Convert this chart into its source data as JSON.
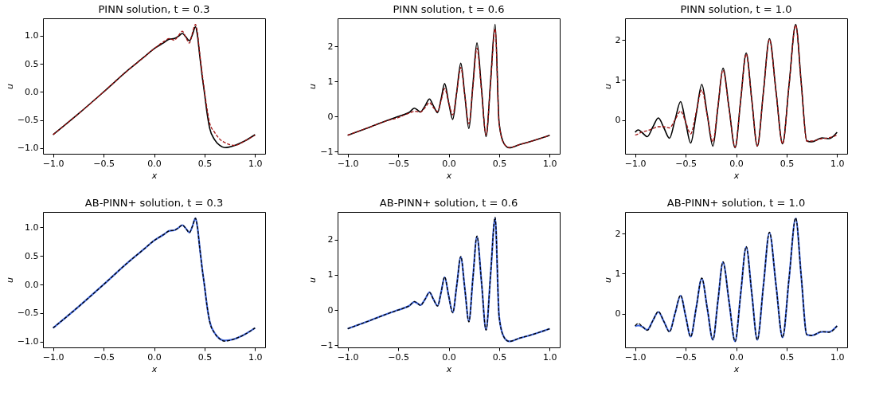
{
  "chart_data": [
    {
      "type": "line",
      "title": "PINN solution, t = 0.3",
      "xlabel": "x",
      "ylabel": "u",
      "xlim": [
        -1.1,
        1.1
      ],
      "ylim": [
        -1.1,
        1.31
      ],
      "xticks": [
        {
          "value": -1,
          "label": "−1.0"
        },
        {
          "value": -0.5,
          "label": "−0.5"
        },
        {
          "value": 0,
          "label": "0.0"
        },
        {
          "value": 0.5,
          "label": "0.5"
        },
        {
          "value": 1,
          "label": "1.0"
        }
      ],
      "yticks": [
        {
          "value": -1,
          "label": "−1.0"
        },
        {
          "value": -0.5,
          "label": "−0.5"
        },
        {
          "value": 0,
          "label": "0.0"
        },
        {
          "value": 0.5,
          "label": "0.5"
        },
        {
          "value": 1,
          "label": "1.0"
        }
      ],
      "grid": false,
      "x": [
        -1,
        -0.75,
        -0.5,
        -0.25,
        -0.1,
        0,
        0.1,
        0.15,
        0.2,
        0.24,
        0.28,
        0.315,
        0.35,
        0.38,
        0.41,
        0.43,
        0.45,
        0.475,
        0.5,
        0.525,
        0.55,
        0.6,
        0.65,
        0.7,
        0.8,
        0.9,
        1.0
      ],
      "series": [
        {
          "color": "#000000",
          "line_style": "solid",
          "values": [
            -0.76,
            -0.39,
            0.0,
            0.4,
            0.62,
            0.77,
            0.88,
            0.94,
            0.95,
            0.99,
            1.04,
            0.98,
            0.91,
            1.02,
            1.16,
            1.0,
            0.68,
            0.3,
            -0.03,
            -0.38,
            -0.64,
            -0.85,
            -0.95,
            -0.99,
            -0.95,
            -0.87,
            -0.76
          ]
        },
        {
          "color": "#a01010",
          "line_style": "dashed",
          "values": [
            -0.76,
            -0.39,
            0.0,
            0.4,
            0.62,
            0.77,
            0.9,
            0.95,
            0.92,
            1.0,
            1.08,
            0.97,
            0.87,
            1.05,
            1.2,
            1.05,
            0.72,
            0.35,
            0.0,
            -0.3,
            -0.55,
            -0.72,
            -0.84,
            -0.9,
            -0.95,
            -0.87,
            -0.77
          ]
        }
      ]
    },
    {
      "type": "line",
      "title": "PINN solution, t = 0.6",
      "xlabel": "x",
      "ylabel": "u",
      "xlim": [
        -1.1,
        1.1
      ],
      "ylim": [
        -1.06,
        2.8
      ],
      "xticks": [
        {
          "value": -1,
          "label": "−1.0"
        },
        {
          "value": -0.5,
          "label": "−0.5"
        },
        {
          "value": 0,
          "label": "0.0"
        },
        {
          "value": 0.5,
          "label": "0.5"
        },
        {
          "value": 1,
          "label": "1.0"
        }
      ],
      "yticks": [
        {
          "value": -1,
          "label": "−1"
        },
        0,
        1,
        2
      ],
      "grid": false,
      "x": [
        -1,
        -0.8,
        -0.6,
        -0.5,
        -0.45,
        -0.39,
        -0.34,
        -0.31,
        -0.28,
        -0.235,
        -0.19,
        -0.15,
        -0.11,
        -0.075,
        -0.04,
        0.0,
        0.04,
        0.08,
        0.12,
        0.16,
        0.2,
        0.24,
        0.28,
        0.325,
        0.37,
        0.415,
        0.46,
        0.5,
        0.55,
        0.6,
        0.7,
        0.8,
        0.9,
        1.0
      ],
      "series": [
        {
          "color": "#000000",
          "line_style": "solid",
          "values": [
            -0.53,
            -0.32,
            -0.1,
            0.0,
            0.05,
            0.12,
            0.24,
            0.19,
            0.13,
            0.3,
            0.5,
            0.3,
            0.11,
            0.5,
            0.94,
            0.4,
            -0.08,
            0.7,
            1.52,
            0.6,
            -0.34,
            0.9,
            2.1,
            0.8,
            -0.57,
            1.0,
            2.63,
            -0.2,
            -0.78,
            -0.89,
            -0.8,
            -0.72,
            -0.63,
            -0.53
          ]
        },
        {
          "color": "#a01010",
          "line_style": "dashed",
          "values": [
            -0.53,
            -0.32,
            -0.11,
            -0.03,
            0.03,
            0.1,
            0.15,
            0.14,
            0.13,
            0.25,
            0.4,
            0.25,
            0.15,
            0.45,
            0.8,
            0.4,
            0.05,
            0.7,
            1.4,
            0.6,
            -0.2,
            0.85,
            1.95,
            0.75,
            -0.52,
            0.95,
            2.5,
            -0.2,
            -0.78,
            -0.88,
            -0.8,
            -0.72,
            -0.63,
            -0.53
          ]
        }
      ]
    },
    {
      "type": "line",
      "title": "PINN solution, t = 1.0",
      "xlabel": "x",
      "ylabel": "u",
      "xlim": [
        -1.1,
        1.1
      ],
      "ylim": [
        -0.85,
        2.55
      ],
      "xticks": [
        {
          "value": -1,
          "label": "−1.0"
        },
        {
          "value": -0.5,
          "label": "−0.5"
        },
        {
          "value": 0,
          "label": "0.0"
        },
        {
          "value": 0.5,
          "label": "0.5"
        },
        {
          "value": 1,
          "label": "1.0"
        }
      ],
      "yticks": [
        0,
        1,
        2
      ],
      "grid": false,
      "x": [
        -1,
        -0.97,
        -0.93,
        -0.88,
        -0.825,
        -0.77,
        -0.715,
        -0.66,
        -0.605,
        -0.55,
        -0.5,
        -0.45,
        -0.395,
        -0.34,
        -0.285,
        -0.23,
        -0.18,
        -0.13,
        -0.07,
        -0.01,
        0.045,
        0.1,
        0.155,
        0.21,
        0.27,
        0.33,
        0.395,
        0.46,
        0.525,
        0.59,
        0.645,
        0.7,
        0.75,
        0.85,
        0.92,
        1.0
      ],
      "series": [
        {
          "color": "#000000",
          "line_style": "solid",
          "values": [
            -0.31,
            -0.25,
            -0.32,
            -0.42,
            -0.18,
            0.05,
            -0.2,
            -0.46,
            0.0,
            0.46,
            -0.06,
            -0.58,
            0.15,
            0.89,
            0.12,
            -0.66,
            0.32,
            1.3,
            0.3,
            -0.7,
            0.49,
            1.68,
            0.51,
            -0.66,
            0.69,
            2.04,
            0.72,
            -0.6,
            0.9,
            2.4,
            0.93,
            -0.53,
            -0.55,
            -0.45,
            -0.47,
            -0.31
          ]
        },
        {
          "color": "#a01010",
          "line_style": "dashed",
          "values": [
            -0.38,
            -0.35,
            -0.3,
            -0.27,
            -0.22,
            -0.17,
            -0.17,
            -0.2,
            0.0,
            0.22,
            -0.05,
            -0.35,
            0.2,
            0.75,
            0.1,
            -0.55,
            0.35,
            1.25,
            0.28,
            -0.68,
            0.49,
            1.65,
            0.5,
            -0.65,
            0.68,
            2.02,
            0.71,
            -0.6,
            0.89,
            2.38,
            0.92,
            -0.53,
            -0.53,
            -0.47,
            -0.45,
            -0.38
          ]
        }
      ]
    },
    {
      "type": "line",
      "title": "AB-PINN+ solution, t = 0.3",
      "xlabel": "x",
      "ylabel": "u",
      "xlim": [
        -1.1,
        1.1
      ],
      "ylim": [
        -1.1,
        1.27
      ],
      "xticks": [
        {
          "value": -1,
          "label": "−1.0"
        },
        {
          "value": -0.5,
          "label": "−0.5"
        },
        {
          "value": 0,
          "label": "0.0"
        },
        {
          "value": 0.5,
          "label": "0.5"
        },
        {
          "value": 1,
          "label": "1.0"
        }
      ],
      "yticks": [
        {
          "value": -1,
          "label": "−1.0"
        },
        {
          "value": -0.5,
          "label": "−0.5"
        },
        {
          "value": 0,
          "label": "0.0"
        },
        {
          "value": 0.5,
          "label": "0.5"
        },
        {
          "value": 1,
          "label": "1.0"
        }
      ],
      "grid": false,
      "x": [
        -1,
        -0.75,
        -0.5,
        -0.25,
        -0.1,
        0,
        0.1,
        0.15,
        0.2,
        0.24,
        0.28,
        0.315,
        0.35,
        0.38,
        0.41,
        0.43,
        0.45,
        0.475,
        0.5,
        0.525,
        0.55,
        0.6,
        0.65,
        0.7,
        0.8,
        0.9,
        1.0
      ],
      "series": [
        {
          "color": "#4169e1",
          "line_style": "solid",
          "values": [
            -0.76,
            -0.39,
            0.0,
            0.4,
            0.62,
            0.77,
            0.88,
            0.94,
            0.95,
            0.99,
            1.04,
            0.98,
            0.91,
            1.02,
            1.16,
            1.0,
            0.68,
            0.3,
            -0.03,
            -0.38,
            -0.64,
            -0.85,
            -0.95,
            -0.98,
            -0.95,
            -0.87,
            -0.76
          ]
        },
        {
          "color": "#000000",
          "line_style": "dashed",
          "values": [
            -0.76,
            -0.39,
            0.0,
            0.4,
            0.62,
            0.77,
            0.88,
            0.94,
            0.95,
            0.99,
            1.04,
            0.98,
            0.91,
            1.02,
            1.16,
            1.0,
            0.68,
            0.3,
            -0.03,
            -0.38,
            -0.64,
            -0.85,
            -0.95,
            -0.99,
            -0.95,
            -0.87,
            -0.76
          ]
        }
      ]
    },
    {
      "type": "line",
      "title": "AB-PINN+ solution, t = 0.6",
      "xlabel": "x",
      "ylabel": "u",
      "xlim": [
        -1.1,
        1.1
      ],
      "ylim": [
        -1.06,
        2.78
      ],
      "xticks": [
        {
          "value": -1,
          "label": "−1.0"
        },
        {
          "value": -0.5,
          "label": "−0.5"
        },
        {
          "value": 0,
          "label": "0.0"
        },
        {
          "value": 0.5,
          "label": "0.5"
        },
        {
          "value": 1,
          "label": "1.0"
        }
      ],
      "yticks": [
        {
          "value": -1,
          "label": "−1"
        },
        0,
        1,
        2
      ],
      "grid": false,
      "x": [
        -1,
        -0.8,
        -0.6,
        -0.5,
        -0.45,
        -0.39,
        -0.34,
        -0.31,
        -0.28,
        -0.235,
        -0.19,
        -0.15,
        -0.11,
        -0.075,
        -0.04,
        0.0,
        0.04,
        0.08,
        0.12,
        0.16,
        0.2,
        0.24,
        0.28,
        0.325,
        0.37,
        0.415,
        0.46,
        0.5,
        0.55,
        0.6,
        0.7,
        0.8,
        0.9,
        1.0
      ],
      "series": [
        {
          "color": "#4169e1",
          "line_style": "solid",
          "values": [
            -0.53,
            -0.32,
            -0.1,
            0.0,
            0.05,
            0.12,
            0.23,
            0.19,
            0.14,
            0.3,
            0.5,
            0.3,
            0.12,
            0.5,
            0.93,
            0.4,
            -0.07,
            0.7,
            1.5,
            0.6,
            -0.32,
            0.9,
            2.08,
            0.8,
            -0.56,
            1.0,
            2.6,
            -0.2,
            -0.78,
            -0.89,
            -0.8,
            -0.72,
            -0.63,
            -0.53
          ]
        },
        {
          "color": "#000000",
          "line_style": "dashed",
          "values": [
            -0.53,
            -0.32,
            -0.1,
            0.0,
            0.05,
            0.12,
            0.24,
            0.19,
            0.13,
            0.3,
            0.5,
            0.3,
            0.11,
            0.5,
            0.94,
            0.4,
            -0.08,
            0.7,
            1.52,
            0.6,
            -0.34,
            0.9,
            2.1,
            0.8,
            -0.57,
            1.0,
            2.63,
            -0.2,
            -0.78,
            -0.89,
            -0.8,
            -0.72,
            -0.63,
            -0.53
          ]
        }
      ]
    },
    {
      "type": "line",
      "title": "AB-PINN+ solution, t = 1.0",
      "xlabel": "x",
      "ylabel": "u",
      "xlim": [
        -1.1,
        1.1
      ],
      "ylim": [
        -0.85,
        2.55
      ],
      "xticks": [
        {
          "value": -1,
          "label": "−1.0"
        },
        {
          "value": -0.5,
          "label": "−0.5"
        },
        {
          "value": 0,
          "label": "0.0"
        },
        {
          "value": 0.5,
          "label": "0.5"
        },
        {
          "value": 1,
          "label": "1.0"
        }
      ],
      "yticks": [
        0,
        1,
        2
      ],
      "grid": false,
      "x": [
        -1,
        -0.97,
        -0.93,
        -0.88,
        -0.825,
        -0.77,
        -0.715,
        -0.66,
        -0.605,
        -0.55,
        -0.5,
        -0.45,
        -0.395,
        -0.34,
        -0.285,
        -0.23,
        -0.18,
        -0.13,
        -0.07,
        -0.01,
        0.045,
        0.1,
        0.155,
        0.21,
        0.27,
        0.33,
        0.395,
        0.46,
        0.525,
        0.59,
        0.645,
        0.7,
        0.75,
        0.85,
        0.92,
        1.0
      ],
      "series": [
        {
          "color": "#4169e1",
          "line_style": "solid",
          "values": [
            -0.32,
            -0.3,
            -0.33,
            -0.41,
            -0.18,
            0.04,
            -0.2,
            -0.45,
            0.0,
            0.45,
            -0.06,
            -0.58,
            0.15,
            0.88,
            0.12,
            -0.66,
            0.32,
            1.29,
            0.3,
            -0.7,
            0.49,
            1.67,
            0.51,
            -0.66,
            0.69,
            2.03,
            0.72,
            -0.6,
            0.9,
            2.39,
            0.93,
            -0.53,
            -0.55,
            -0.46,
            -0.46,
            -0.31
          ]
        },
        {
          "color": "#000000",
          "line_style": "dashed",
          "values": [
            -0.31,
            -0.25,
            -0.32,
            -0.42,
            -0.18,
            0.05,
            -0.2,
            -0.46,
            0.0,
            0.46,
            -0.06,
            -0.58,
            0.15,
            0.89,
            0.12,
            -0.66,
            0.32,
            1.3,
            0.3,
            -0.7,
            0.49,
            1.68,
            0.51,
            -0.66,
            0.69,
            2.04,
            0.72,
            -0.6,
            0.9,
            2.4,
            0.93,
            -0.53,
            -0.55,
            -0.45,
            -0.47,
            -0.31
          ]
        }
      ]
    }
  ]
}
